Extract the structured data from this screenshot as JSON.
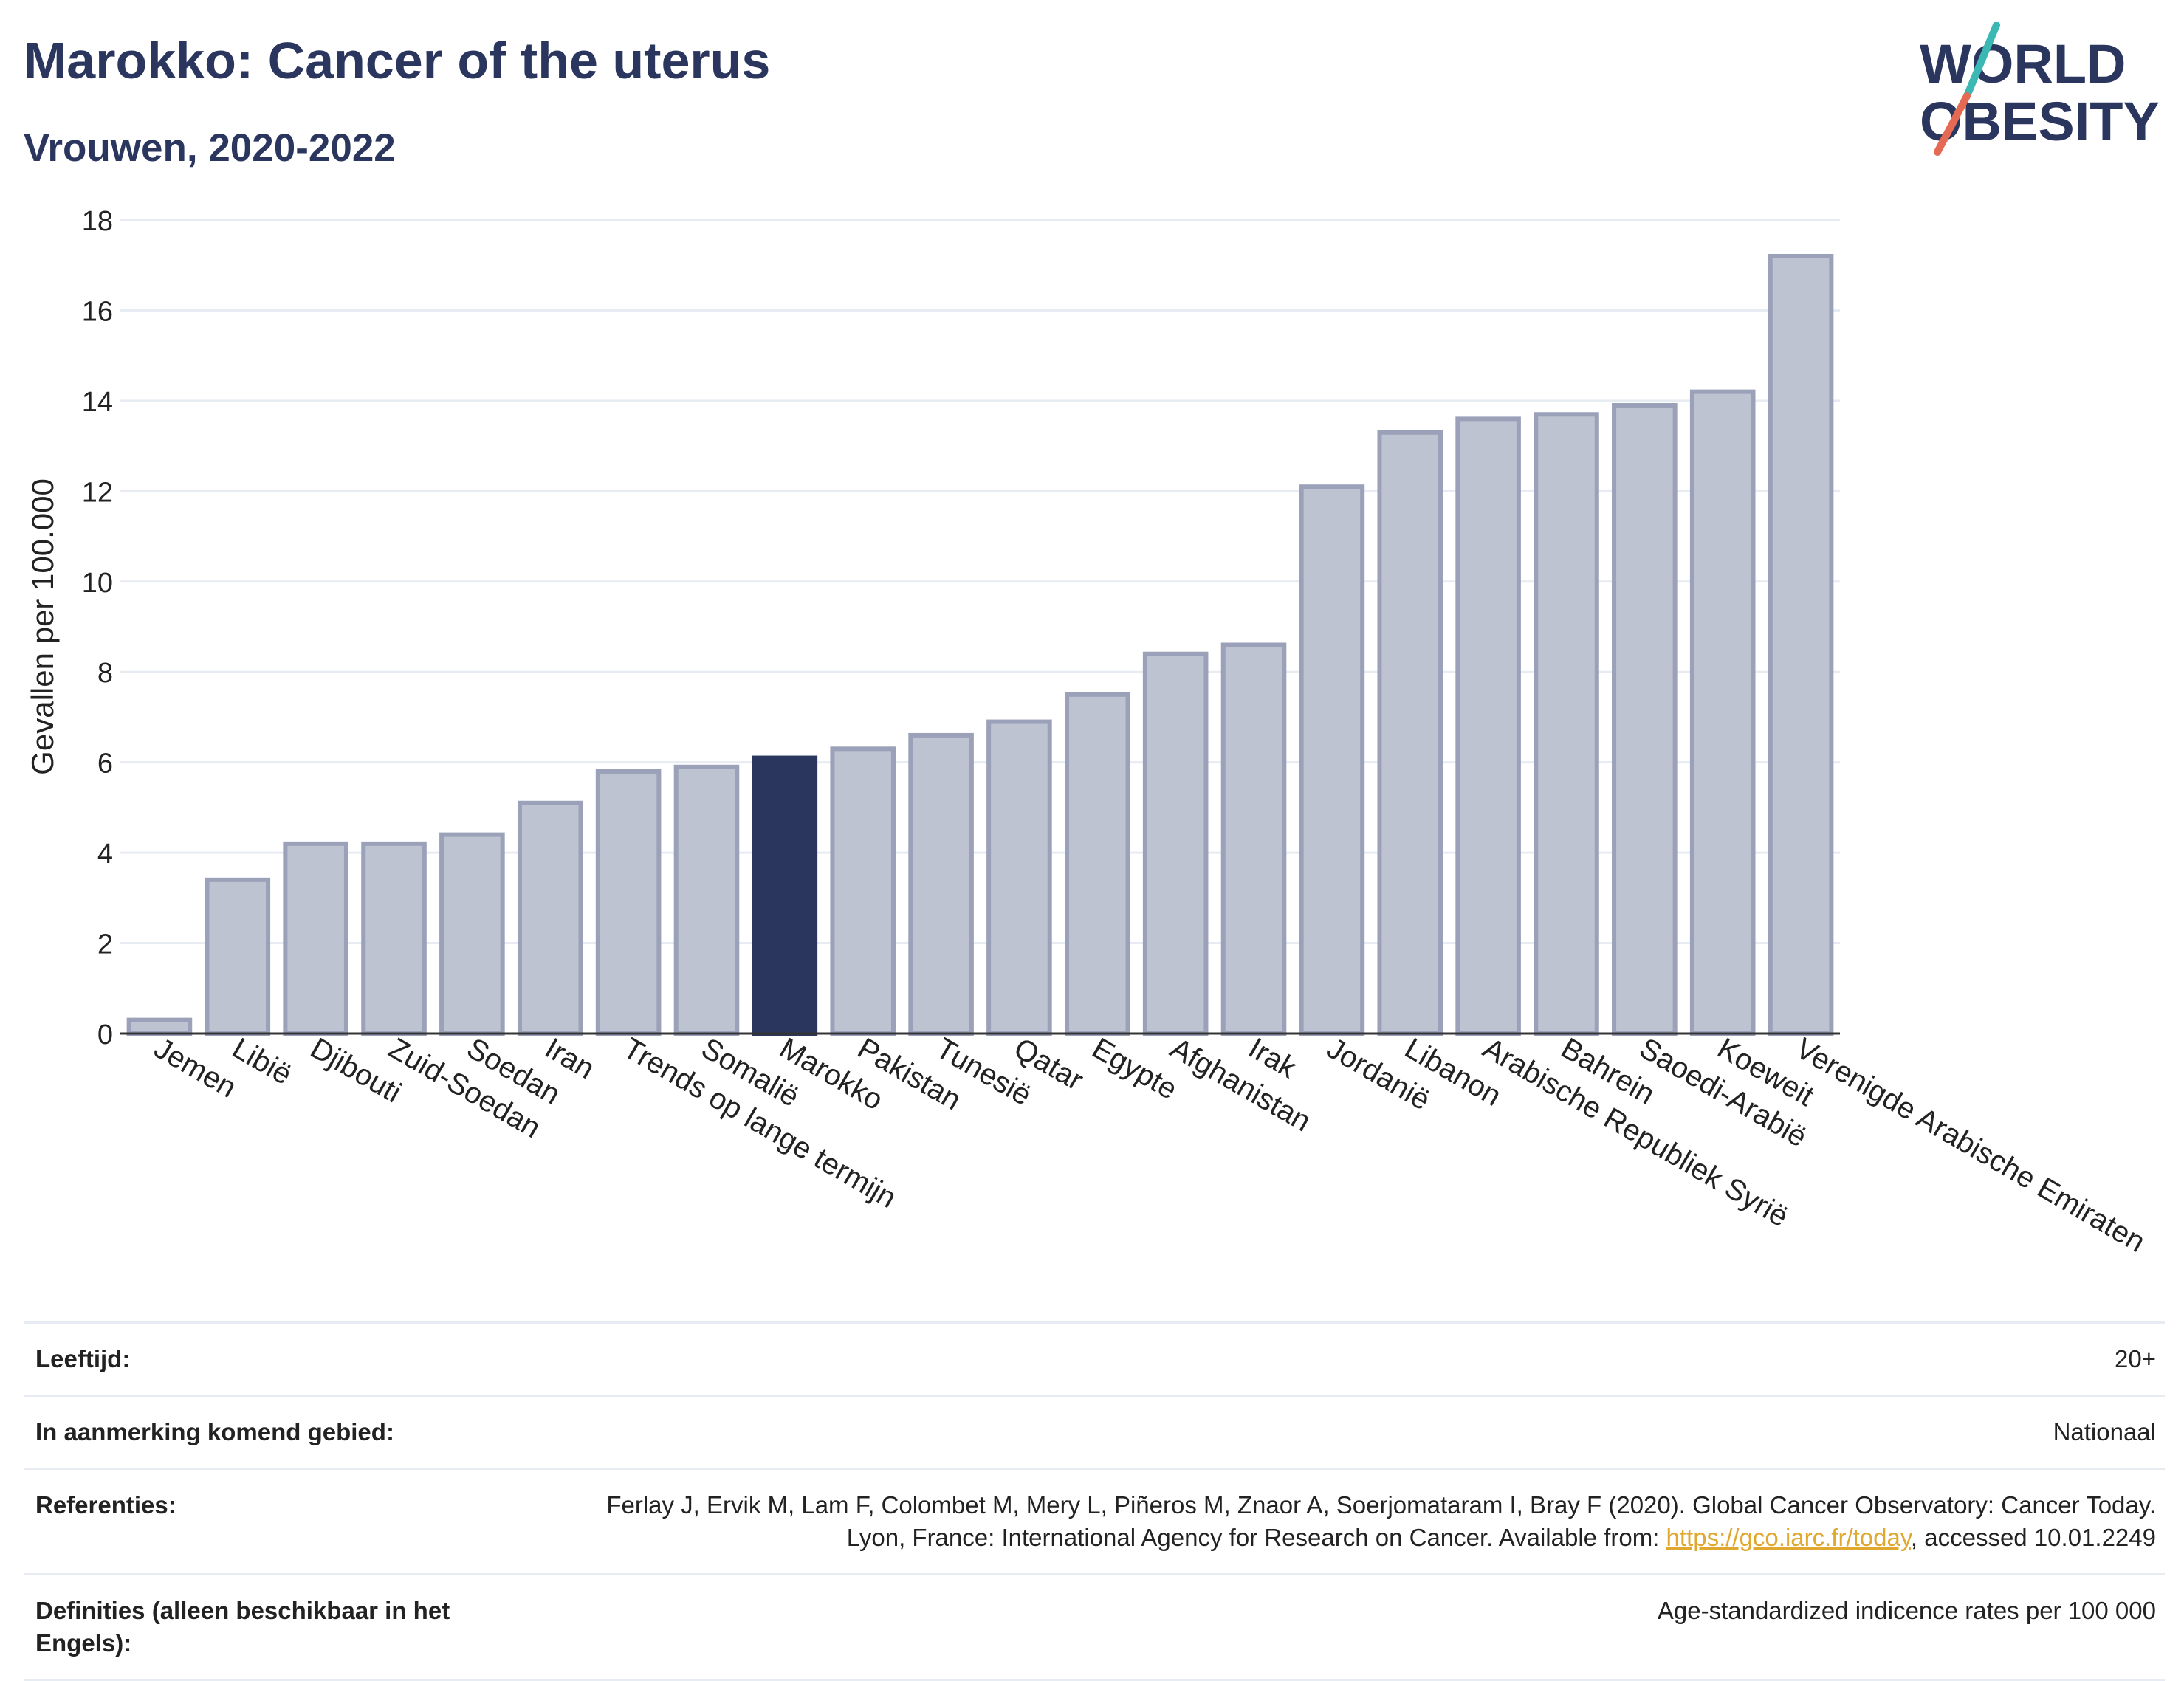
{
  "header": {
    "title": "Marokko: Cancer of the uterus",
    "subtitle": "Vrouwen, 2020-2022"
  },
  "logo": {
    "line1": "WORLD",
    "line2": "OBESITY"
  },
  "colors": {
    "title": "#2b365f",
    "highlight": "#2b365f",
    "bar": "#bec3d1",
    "bar_edge": "#9aa1b8",
    "link": "#e0a82e",
    "grid": "#e6ecf2"
  },
  "chart_data": {
    "type": "bar",
    "ylabel": "Gevallen per 100.000",
    "ylim": [
      0,
      18
    ],
    "yticks": [
      0,
      2,
      4,
      6,
      8,
      10,
      12,
      14,
      16,
      18
    ],
    "grid": true,
    "highlight": "Marokko",
    "categories": [
      "Jemen",
      "Libië",
      "Djibouti",
      "Zuid-Soedan",
      "Soedan",
      "Iran",
      "Trends op lange termijn",
      "Somalië",
      "Marokko",
      "Pakistan",
      "Tunesië",
      "Qatar",
      "Egypte",
      "Afghanistan",
      "Irak",
      "Jordanië",
      "Libanon",
      "Arabische Republiek Syrië",
      "Bahrein",
      "Saoedi-Arabië",
      "Koeweit",
      "Verenigde Arabische Emiraten"
    ],
    "values": [
      0.3,
      3.4,
      4.2,
      4.2,
      4.4,
      5.1,
      5.8,
      5.9,
      6.1,
      6.3,
      6.6,
      6.9,
      7.5,
      8.4,
      8.6,
      12.1,
      13.3,
      13.6,
      13.7,
      13.9,
      14.2,
      17.2
    ]
  },
  "footer": {
    "age_label": "Leeftijd:",
    "age_value": "20+",
    "area_label": "In aanmerking komend gebied:",
    "area_value": "Nationaal",
    "ref_label": "Referenties:",
    "ref_text_1": "Ferlay J, Ervik M, Lam F, Colombet M, Mery L, Piñeros M, Znaor A, Soerjomataram I, Bray F (2020). Global Cancer Observatory: Cancer Today. Lyon, France: International Agency for Research on Cancer. Available from: ",
    "ref_link": "https://gco.iarc.fr/today",
    "ref_text_2": ", accessed 10.01.2249",
    "def_label": "Definities (alleen beschikbaar in het Engels):",
    "def_value": "Age-standardized indicence rates per 100 000"
  }
}
